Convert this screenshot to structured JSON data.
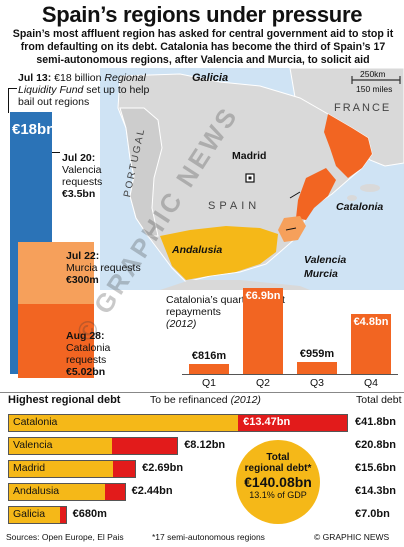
{
  "title": "Spain’s regions under pressure",
  "intro": "Spain’s most affluent region has asked for central government aid to stop it from defaulting on its debt. Catalonia has become the third of Spain’s 17 semi-autonomous regions, after Valencia and Murcia, to solicit aid",
  "timeline": {
    "jul13_date": "Jul 13:",
    "jul13_text_a": " €18 billion ",
    "jul13_text_b": "Regional Liquidity Fund",
    "jul13_text_c": " set up to help bail out regions",
    "big_value": "€18bn",
    "jul20_date": "Jul 20:",
    "jul20_text": "Valencia requests",
    "jul20_amount": "€3.5bn",
    "jul22_date": "Jul 22:",
    "jul22_text": "Murcia requests",
    "jul22_amount": "€300m",
    "aug28_date": "Aug 28:",
    "aug28_text": "Catalonia requests",
    "aug28_amount": "€5.02bn"
  },
  "map": {
    "labels": {
      "galicia": "Galicia",
      "madrid": "Madrid",
      "portugal": "PORTUGAL",
      "spain": "SPAIN",
      "france": "FRANCE",
      "catalonia": "Catalonia",
      "andalusia": "Andalusia",
      "valencia": "Valencia",
      "murcia": "Murcia"
    },
    "scale_km": "250km",
    "scale_miles": "150 miles",
    "colors": {
      "sea": "#cfe3f4",
      "land": "#d9d9d9",
      "highlight": "#f26522",
      "highlight2": "#f6a05b",
      "andalusia": "#f5b818"
    }
  },
  "chart_data": [
    {
      "type": "bar",
      "title": "Catalonia’s quarterly debt repayments (2012)",
      "categories": [
        "Q1",
        "Q2",
        "Q3",
        "Q4"
      ],
      "values": [
        816,
        6900,
        959,
        4800
      ],
      "value_labels": [
        "€816m",
        "€6.9bn",
        "€959m",
        "€4.8bn"
      ],
      "unit": "€m"
    },
    {
      "type": "bar",
      "title": "Highest regional debt",
      "categories": [
        "Catalonia",
        "Valencia",
        "Madrid",
        "Andalusia",
        "Galicia"
      ],
      "series": [
        {
          "name": "Total debt",
          "values": [
            41.8,
            20.8,
            15.6,
            14.3,
            7.0
          ]
        },
        {
          "name": "To be refinanced (2012)",
          "values": [
            13.47,
            8.12,
            2.69,
            2.44,
            0.68
          ]
        }
      ],
      "refinance_labels": [
        "€13.47bn",
        "€8.12bn",
        "€2.69bn",
        "€2.44bn",
        "€680m"
      ],
      "total_labels": [
        "€41.8bn",
        "€20.8bn",
        "€15.6bn",
        "€14.3bn",
        "€7.0bn"
      ],
      "colors": {
        "total": "#f5b818",
        "refinance": "#e21b1b"
      }
    }
  ],
  "quarterly": {
    "caption_a": "Catalonia’s quarterly debt repayments",
    "caption_b": "(2012)"
  },
  "debt": {
    "heading": "Highest regional debt",
    "refinance_head_a": "To be refinanced ",
    "refinance_head_b": "(2012)",
    "total_head": "Total debt",
    "circle_line1": "Total",
    "circle_line2": "regional debt*",
    "circle_value": "€140.08bn",
    "circle_gdp": "13.1% of GDP"
  },
  "footer": {
    "sources": "Sources: Open Europe, El Pais",
    "note": "*17 semi-autonomous regions",
    "credit": "© GRAPHIC NEWS"
  },
  "watermark": "© GRAPHIC NEWS"
}
